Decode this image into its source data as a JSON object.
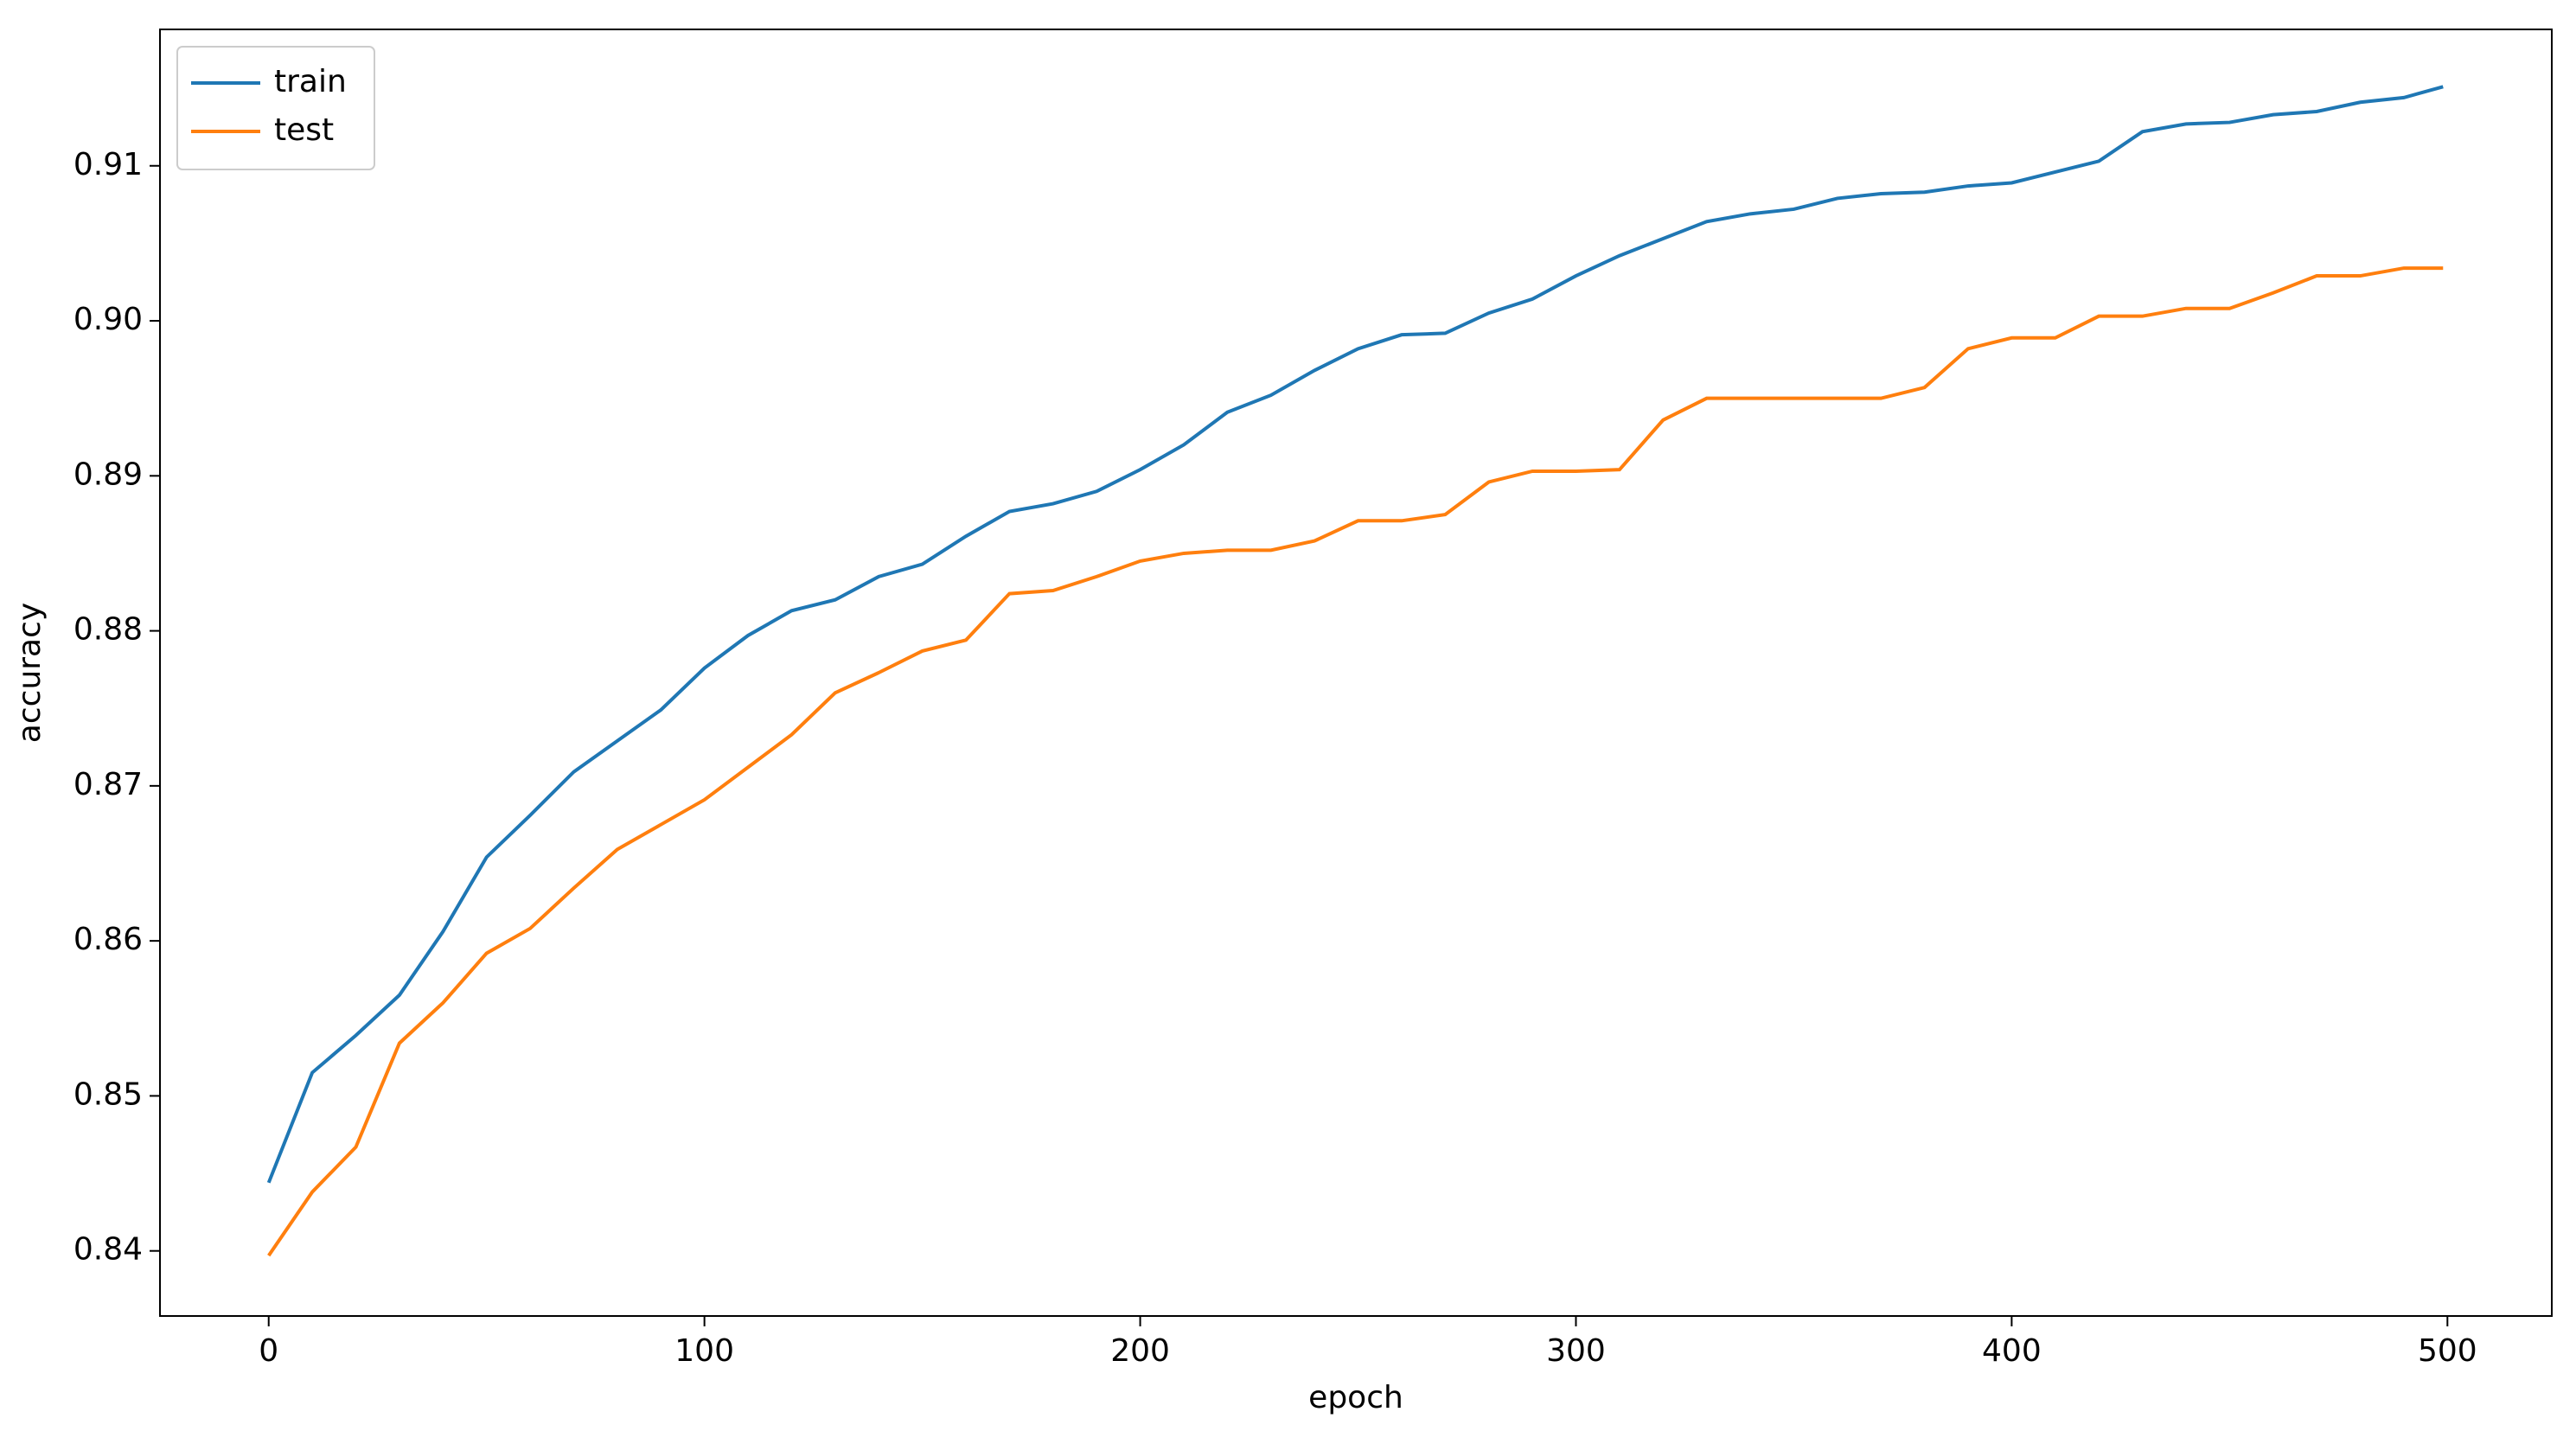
{
  "chart_data": {
    "type": "line",
    "xlabel": "epoch",
    "ylabel": "accuracy",
    "x": [
      0,
      10,
      20,
      30,
      40,
      50,
      60,
      70,
      80,
      90,
      100,
      110,
      120,
      130,
      140,
      150,
      160,
      170,
      180,
      190,
      200,
      210,
      220,
      230,
      240,
      250,
      260,
      270,
      280,
      290,
      300,
      310,
      320,
      330,
      340,
      350,
      360,
      370,
      380,
      390,
      400,
      410,
      420,
      430,
      440,
      450,
      460,
      470,
      480,
      490,
      499
    ],
    "series": [
      {
        "name": "train",
        "color": "#1f77b4",
        "values": [
          0.8444,
          0.8515,
          0.8539,
          0.8565,
          0.8606,
          0.8654,
          0.8681,
          0.8709,
          0.8729,
          0.8749,
          0.8776,
          0.8797,
          0.8813,
          0.882,
          0.8835,
          0.8843,
          0.8861,
          0.8877,
          0.8882,
          0.889,
          0.8904,
          0.892,
          0.8941,
          0.8952,
          0.8968,
          0.8982,
          0.8991,
          0.8992,
          0.9005,
          0.9014,
          0.9029,
          0.9042,
          0.9053,
          0.9064,
          0.9069,
          0.9072,
          0.9079,
          0.9082,
          0.9083,
          0.9087,
          0.9089,
          0.9096,
          0.9103,
          0.9122,
          0.9127,
          0.9128,
          0.9133,
          0.9135,
          0.9141,
          0.9144,
          0.9151
        ]
      },
      {
        "name": "test",
        "color": "#ff7f0e",
        "values": [
          0.8397,
          0.8438,
          0.8467,
          0.8534,
          0.856,
          0.8592,
          0.8608,
          0.8634,
          0.8659,
          0.8675,
          0.8691,
          0.8712,
          0.8733,
          0.876,
          0.8773,
          0.8787,
          0.8794,
          0.8824,
          0.8826,
          0.8835,
          0.8845,
          0.885,
          0.8852,
          0.8852,
          0.8858,
          0.8871,
          0.8871,
          0.8875,
          0.8896,
          0.8903,
          0.8903,
          0.8904,
          0.8936,
          0.895,
          0.895,
          0.895,
          0.895,
          0.895,
          0.8957,
          0.8982,
          0.8989,
          0.8989,
          0.9003,
          0.9003,
          0.9008,
          0.9008,
          0.9018,
          0.9029,
          0.9029,
          0.9034,
          0.9034
        ]
      }
    ],
    "xlim": [
      -24.95,
      523.95
    ],
    "xticks": [
      0,
      100,
      200,
      300,
      400,
      500
    ],
    "ylim": [
      0.8358,
      0.9188
    ],
    "yticks": [
      0.84,
      0.85,
      0.86,
      0.87,
      0.88,
      0.89,
      {
        "value": 0.9,
        "label": "0.90"
      },
      0.91
    ],
    "legend": "upper left"
  }
}
